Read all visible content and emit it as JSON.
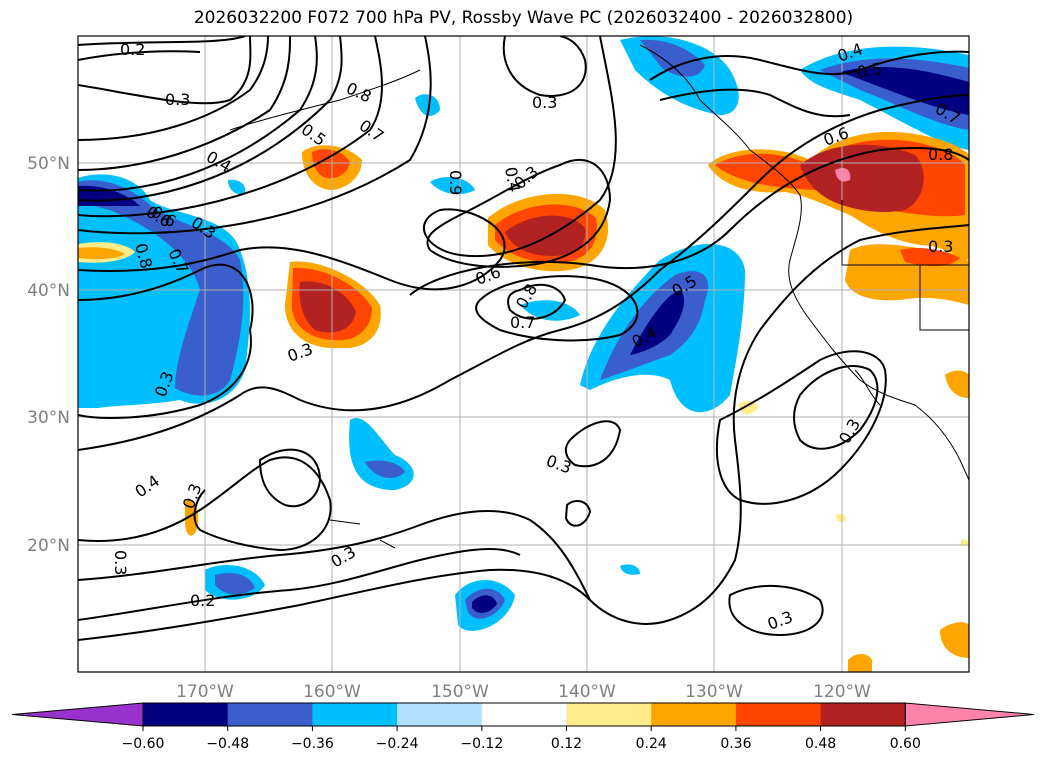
{
  "title": "2026032200 F072 700 hPa PV, Rossby Wave PC (2026032400 - 2026032800)",
  "lat_labels": [
    "50°N",
    "40°N",
    "30°N",
    "20°N"
  ],
  "lon_labels": [
    "170°W",
    "160°W",
    "150°W",
    "140°W",
    "130°W",
    "120°W"
  ],
  "contour_labels": [
    "0.2",
    "0.3",
    "0.8",
    "0.7",
    "0.5",
    "0.4",
    "0.6",
    "0.3",
    "0.8",
    "0.7",
    "0.6",
    "0.3",
    "0.3",
    "0.3",
    "0.4",
    "0.3",
    "0.2",
    "0.3",
    "0.3",
    "0.9",
    "0.4",
    "0.3",
    "0.6",
    "0.8",
    "0.7",
    "0.5",
    "0.4",
    "0.3",
    "0.3",
    "0.6",
    "0.8",
    "0.7",
    "0.4",
    "0.5",
    "0.3",
    "0.3"
  ],
  "colorbar": {
    "ticks": [
      "−0.60",
      "−0.48",
      "−0.36",
      "−0.24",
      "−0.12",
      "0.12",
      "0.24",
      "0.36",
      "0.48",
      "0.60"
    ],
    "colors": [
      "#9932cc",
      "#000080",
      "#3a5fcd",
      "#00bfff",
      "#b0e2ff",
      "#ffffff",
      "#ffec8b",
      "#ffa500",
      "#ff4500",
      "#b22222",
      "#ff82ab"
    ]
  }
}
